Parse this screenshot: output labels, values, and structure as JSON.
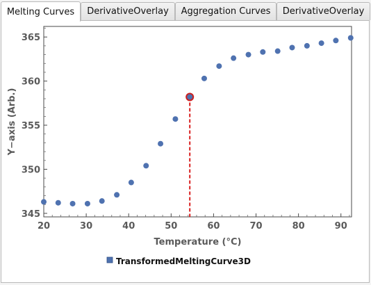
{
  "tabs": [
    {
      "label": "Melting Curves",
      "active": true
    },
    {
      "label": "DerivativeOverlay",
      "active": false
    },
    {
      "label": "Aggregation Curves",
      "active": false
    },
    {
      "label": "DerivativeOverlay",
      "active": false
    }
  ],
  "chart_data": {
    "type": "scatter",
    "title": "",
    "xlabel": "Temperature  (°C)",
    "ylabel": "Y−axis  (Arb.)",
    "xlim": [
      20,
      92.5
    ],
    "ylim": [
      344.6,
      366.2
    ],
    "x_ticks": [
      20,
      30,
      40,
      50,
      60,
      70,
      80,
      90
    ],
    "y_ticks": [
      345,
      350,
      355,
      360,
      365
    ],
    "grid": false,
    "legend_position": "bottom-left",
    "series": [
      {
        "name": "TransformedMeltingCurve3D",
        "color": "#4f72b0",
        "x": [
          20.0,
          23.4,
          26.8,
          30.3,
          33.7,
          37.2,
          40.6,
          44.1,
          47.5,
          51.0,
          54.4,
          57.8,
          61.3,
          64.7,
          68.2,
          71.6,
          75.1,
          78.5,
          82.0,
          85.4,
          88.8,
          92.3
        ],
        "y": [
          346.3,
          346.2,
          346.1,
          346.1,
          346.4,
          347.1,
          348.5,
          350.4,
          352.9,
          355.7,
          358.2,
          360.3,
          361.7,
          362.6,
          363.0,
          363.3,
          363.4,
          363.8,
          364.0,
          364.3,
          364.6,
          364.9
        ]
      }
    ],
    "highlight": {
      "x": 54.4,
      "y": 358.2,
      "marker_color": "#cc1f1f",
      "line_color": "#d81e1e",
      "line_style": "dashed"
    }
  }
}
